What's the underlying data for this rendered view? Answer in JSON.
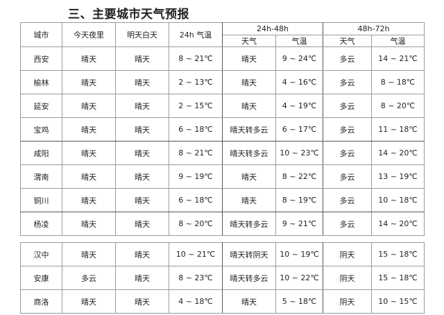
{
  "title": "三、主要城市天气预报",
  "headers": {
    "city": "城市",
    "tonight": "今天夜里",
    "tomorrow_day": "明天白天",
    "temp_24h": "24h 气温",
    "group_24_48": "24h-48h",
    "group_48_72": "48h-72h",
    "weather": "天气",
    "temp": "气温"
  },
  "table1": [
    {
      "city": "西安",
      "tonight": "晴天",
      "day": "晴天",
      "t24": "8 ~ 21℃",
      "w48": "晴天",
      "t48": "9 ~ 24℃",
      "w72": "多云",
      "t72": "14 ~ 21℃"
    },
    {
      "city": "榆林",
      "tonight": "晴天",
      "day": "晴天",
      "t24": "2 ~ 13℃",
      "w48": "晴天",
      "t48": "4 ~ 16℃",
      "w72": "多云",
      "t72": "8 ~ 18℃"
    },
    {
      "city": "延安",
      "tonight": "晴天",
      "day": "晴天",
      "t24": "2 ~ 15℃",
      "w48": "晴天",
      "t48": "4 ~ 19℃",
      "w72": "多云",
      "t72": "8 ~ 20℃"
    },
    {
      "city": "宝鸡",
      "tonight": "晴天",
      "day": "晴天",
      "t24": "6 ~ 18℃",
      "w48": "晴天转多云",
      "t48": "6 ~ 17℃",
      "w72": "多云",
      "t72": "11 ~ 18℃"
    },
    {
      "city": "咸阳",
      "tonight": "晴天",
      "day": "晴天",
      "t24": "8 ~ 21℃",
      "w48": "晴天转多云",
      "t48": "10 ~ 23℃",
      "w72": "多云",
      "t72": "14 ~ 20℃"
    },
    {
      "city": "渭南",
      "tonight": "晴天",
      "day": "晴天",
      "t24": "9 ~ 19℃",
      "w48": "晴天",
      "t48": "8 ~ 22℃",
      "w72": "多云",
      "t72": "13 ~ 19℃"
    },
    {
      "city": "铜川",
      "tonight": "晴天",
      "day": "晴天",
      "t24": "6 ~ 18℃",
      "w48": "晴天",
      "t48": "8 ~ 19℃",
      "w72": "多云",
      "t72": "10 ~ 18℃"
    },
    {
      "city": "杨凌",
      "tonight": "晴天",
      "day": "晴天",
      "t24": "8 ~ 20℃",
      "w48": "晴天转多云",
      "t48": "9 ~ 21℃",
      "w72": "多云",
      "t72": "14 ~ 20℃"
    }
  ],
  "table2": [
    {
      "city": "汉中",
      "tonight": "晴天",
      "day": "晴天",
      "t24": "10 ~ 21℃",
      "w48": "晴天转阴天",
      "t48": "10 ~ 19℃",
      "w72": "阴天",
      "t72": "15 ~ 18℃"
    },
    {
      "city": "安康",
      "tonight": "多云",
      "day": "晴天",
      "t24": "8 ~ 23℃",
      "w48": "晴天转多云",
      "t48": "10 ~ 22℃",
      "w72": "阴天",
      "t72": "15 ~ 18℃"
    },
    {
      "city": "商洛",
      "tonight": "晴天",
      "day": "晴天",
      "t24": "4 ~ 18℃",
      "w48": "晴天",
      "t48": "5 ~ 18℃",
      "w72": "阴天",
      "t72": "10 ~ 15℃"
    }
  ]
}
